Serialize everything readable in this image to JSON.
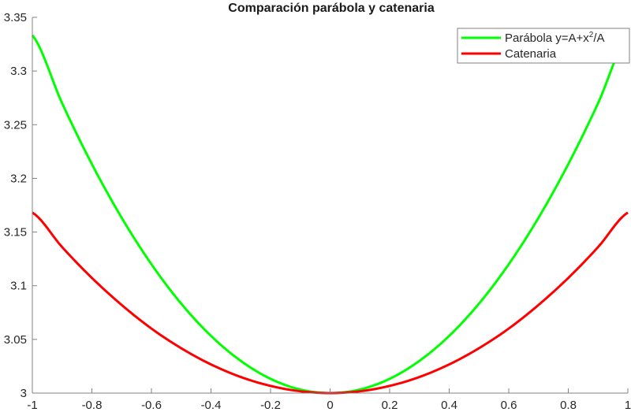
{
  "chart_data": {
    "type": "line",
    "title": "Comparación parábola y catenaria",
    "xlabel": "",
    "ylabel": "",
    "xlim": [
      -1,
      1
    ],
    "ylim": [
      3,
      3.35
    ],
    "xticks": [
      -1,
      -0.8,
      -0.6,
      -0.4,
      -0.2,
      0,
      0.2,
      0.4,
      0.6,
      0.8,
      1
    ],
    "xtick_labels": [
      "-1",
      "-0.8",
      "-0.6",
      "-0.4",
      "-0.2",
      "0",
      "0.2",
      "0.4",
      "0.6",
      "0.8",
      "1"
    ],
    "yticks": [
      3,
      3.05,
      3.1,
      3.15,
      3.2,
      3.25,
      3.3,
      3.35
    ],
    "ytick_labels": [
      "3",
      "3.05",
      "3.1",
      "3.15",
      "3.2",
      "3.25",
      "3.3",
      "3.35"
    ],
    "grid": false,
    "legend_position": "upper right",
    "x": [
      -1,
      -0.9,
      -0.8,
      -0.7,
      -0.6,
      -0.5,
      -0.4,
      -0.3,
      -0.2,
      -0.1,
      0,
      0.1,
      0.2,
      0.3,
      0.4,
      0.5,
      0.6,
      0.7,
      0.8,
      0.9,
      1
    ],
    "series": [
      {
        "name": "Parábola  y=A+x²/A",
        "color": "#00ff00",
        "values": [
          3.3333,
          3.27,
          3.2133,
          3.1633,
          3.12,
          3.0833,
          3.0533,
          3.03,
          3.0133,
          3.0033,
          3.0,
          3.0033,
          3.0133,
          3.03,
          3.0533,
          3.0833,
          3.12,
          3.1633,
          3.2133,
          3.27,
          3.3333
        ]
      },
      {
        "name": "Catenaria",
        "color": "#ff0000",
        "values": [
          3.1681,
          3.136,
          3.1073,
          3.0821,
          3.0601,
          3.0418,
          3.0267,
          3.015,
          3.0067,
          3.0017,
          3.0,
          3.0017,
          3.0067,
          3.015,
          3.0267,
          3.0418,
          3.0601,
          3.0821,
          3.1073,
          3.136,
          3.1681
        ]
      }
    ]
  },
  "legend": {
    "items": [
      {
        "label_main": "Parábola  y=A+x",
        "label_sup": "2",
        "label_tail": "/A",
        "color": "#00ff00"
      },
      {
        "label_main": "Catenaria",
        "color": "#ff0000"
      }
    ]
  }
}
